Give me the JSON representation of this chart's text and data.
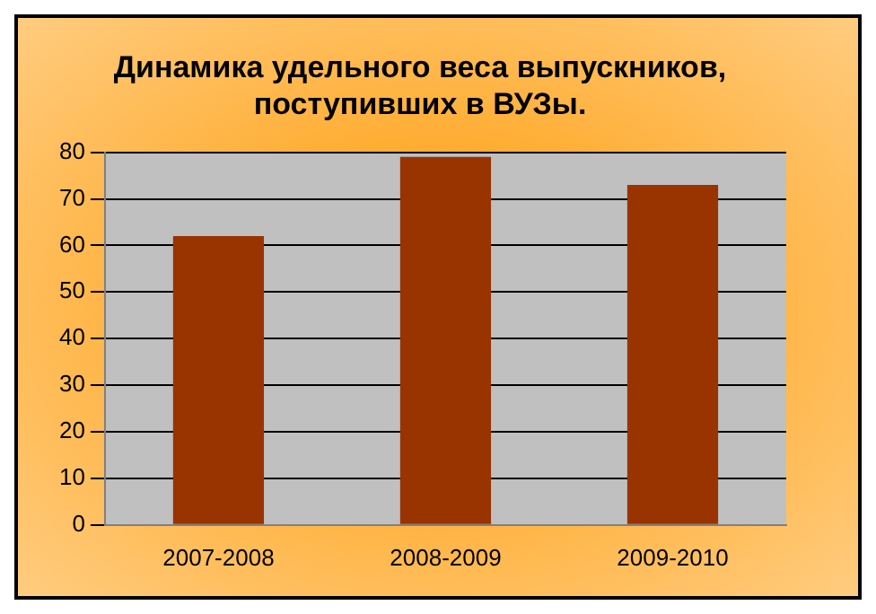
{
  "chart_data": {
    "type": "bar",
    "title": "Динамика удельного веса выпускников, поступивших в ВУЗы.",
    "categories": [
      "2007-2008",
      "2008-2009",
      "2009-2010"
    ],
    "values": [
      62,
      79,
      73
    ],
    "color": "#993300",
    "ylim": [
      0,
      80
    ],
    "yticks": [
      0,
      10,
      20,
      30,
      40,
      50,
      60,
      70,
      80
    ],
    "grid": "y",
    "legend": false
  }
}
